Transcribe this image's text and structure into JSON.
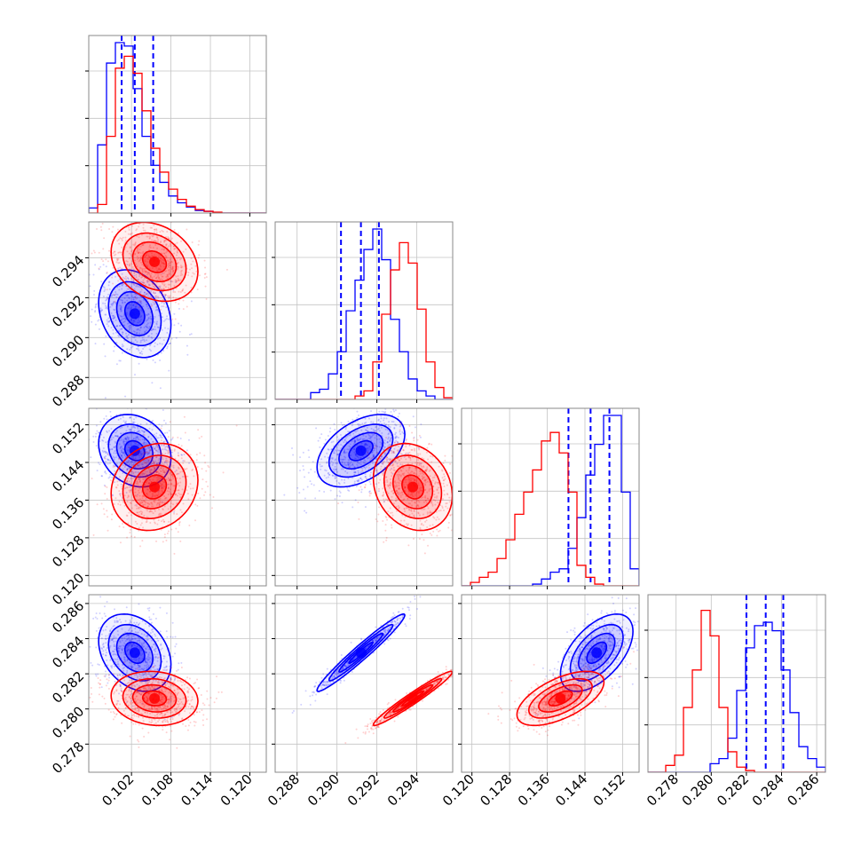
{
  "colors": {
    "series_a": "#0000ff",
    "series_b": "#ff0000"
  },
  "chart_data": {
    "type": "corner",
    "grid": true,
    "legend": "none",
    "parameters": [
      {
        "range": [
          0.0955,
          0.1225
        ],
        "ticks": [
          "0.102",
          "0.108",
          "0.114",
          "0.120"
        ]
      },
      {
        "range": [
          0.2869,
          0.2958
        ],
        "ticks": [
          "0.288",
          "0.290",
          "0.292",
          "0.294"
        ]
      },
      {
        "range": [
          0.1178,
          0.1555
        ],
        "ticks": [
          "0.120",
          "0.128",
          "0.136",
          "0.144",
          "0.152"
        ]
      },
      {
        "range": [
          0.2764,
          0.2865
        ],
        "ticks": [
          "0.278",
          "0.280",
          "0.282",
          "0.284",
          "0.286"
        ]
      }
    ],
    "series": [
      {
        "color": "blue",
        "means": [
          0.1025,
          0.2912,
          0.1465,
          0.2832
        ],
        "sigmas": [
          0.0025,
          0.001,
          0.0035,
          0.001
        ],
        "quantiles": [
          [
            0.1005,
            0.1025,
            0.1053
          ],
          [
            0.2902,
            0.2912,
            0.2921
          ],
          [
            0.1405,
            0.1452,
            0.1492
          ],
          [
            0.282,
            0.2831,
            0.2841
          ]
        ],
        "correlations": [
          [
            0.1025,
            0.1465,
            -0.2
          ],
          [
            0.1025,
            0.2832,
            -0.3
          ],
          [
            0.2912,
            0.1465,
            0.45
          ],
          [
            0.2912,
            0.2832,
            0.97
          ],
          [
            0.1465,
            0.2832,
            0.55
          ]
        ],
        "histograms": [
          [
            0.03,
            0.4,
            0.88,
            1.0,
            0.98,
            0.73,
            0.45,
            0.28,
            0.18,
            0.1,
            0.06,
            0.035,
            0.015,
            0.01,
            0,
            0,
            0,
            0,
            0,
            0
          ],
          [
            0,
            0,
            0,
            0,
            0.04,
            0.06,
            0.15,
            0.28,
            0.52,
            0.7,
            0.88,
            1.0,
            0.82,
            0.47,
            0.28,
            0.12,
            0.05,
            0.02,
            0,
            0
          ],
          [
            0,
            0,
            0,
            0,
            0,
            0,
            0,
            0,
            0.01,
            0.04,
            0.08,
            0.1,
            0.22,
            0.4,
            0.65,
            0.83,
            1.0,
            1.0,
            0.55,
            0.1
          ],
          [
            0,
            0,
            0,
            0,
            0,
            0,
            0,
            0.05,
            0.08,
            0.2,
            0.48,
            0.73,
            0.86,
            0.88,
            0.83,
            0.6,
            0.35,
            0.15,
            0.08,
            0.03
          ]
        ]
      },
      {
        "color": "red",
        "means": [
          0.1055,
          0.2938,
          0.1388,
          0.2806
        ],
        "sigmas": [
          0.003,
          0.0009,
          0.0042,
          0.0007
        ],
        "quantiles": [],
        "correlations": [
          [
            0.1055,
            0.1388,
            0.15
          ],
          [
            0.1055,
            0.2806,
            -0.1
          ],
          [
            0.2938,
            0.1388,
            -0.2
          ],
          [
            0.2938,
            0.2806,
            0.97
          ],
          [
            0.1388,
            0.2806,
            0.6
          ]
        ],
        "histograms": [
          [
            0,
            0.05,
            0.45,
            0.85,
            0.92,
            0.82,
            0.6,
            0.38,
            0.24,
            0.14,
            0.08,
            0.04,
            0.02,
            0.01,
            0.005,
            0,
            0,
            0,
            0,
            0
          ],
          [
            0,
            0,
            0,
            0,
            0,
            0,
            0,
            0,
            0,
            0.02,
            0.05,
            0.22,
            0.5,
            0.76,
            0.92,
            0.8,
            0.53,
            0.22,
            0.07,
            0.01
          ],
          [
            0,
            0.02,
            0.05,
            0.08,
            0.16,
            0.27,
            0.42,
            0.55,
            0.68,
            0.85,
            0.9,
            0.78,
            0.55,
            0.12,
            0.05,
            0.01,
            0,
            0,
            0,
            0
          ],
          [
            0,
            0,
            0.04,
            0.1,
            0.38,
            0.6,
            0.95,
            0.8,
            0.38,
            0.12,
            0.03,
            0.01,
            0,
            0,
            0,
            0,
            0,
            0,
            0,
            0
          ]
        ]
      }
    ]
  }
}
